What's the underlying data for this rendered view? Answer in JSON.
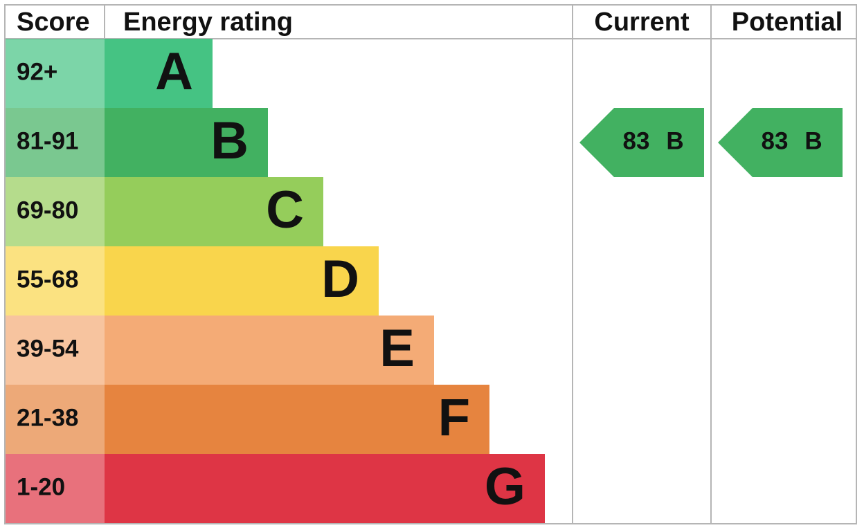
{
  "header": {
    "score": "Score",
    "rating": "Energy rating",
    "current": "Current",
    "potential": "Potential"
  },
  "bands": [
    {
      "score": "92+",
      "letter": "A",
      "color": "#45c383"
    },
    {
      "score": "81-91",
      "letter": "B",
      "color": "#42b161"
    },
    {
      "score": "69-80",
      "letter": "C",
      "color": "#95cd5b"
    },
    {
      "score": "55-68",
      "letter": "D",
      "color": "#f9d54c"
    },
    {
      "score": "39-54",
      "letter": "E",
      "color": "#f4ab76"
    },
    {
      "score": "21-38",
      "letter": "F",
      "color": "#e6843f"
    },
    {
      "score": "1-20",
      "letter": "G",
      "color": "#de3545"
    }
  ],
  "current": {
    "score": 83,
    "letter": "B"
  },
  "potential": {
    "score": 83,
    "letter": "B"
  }
}
